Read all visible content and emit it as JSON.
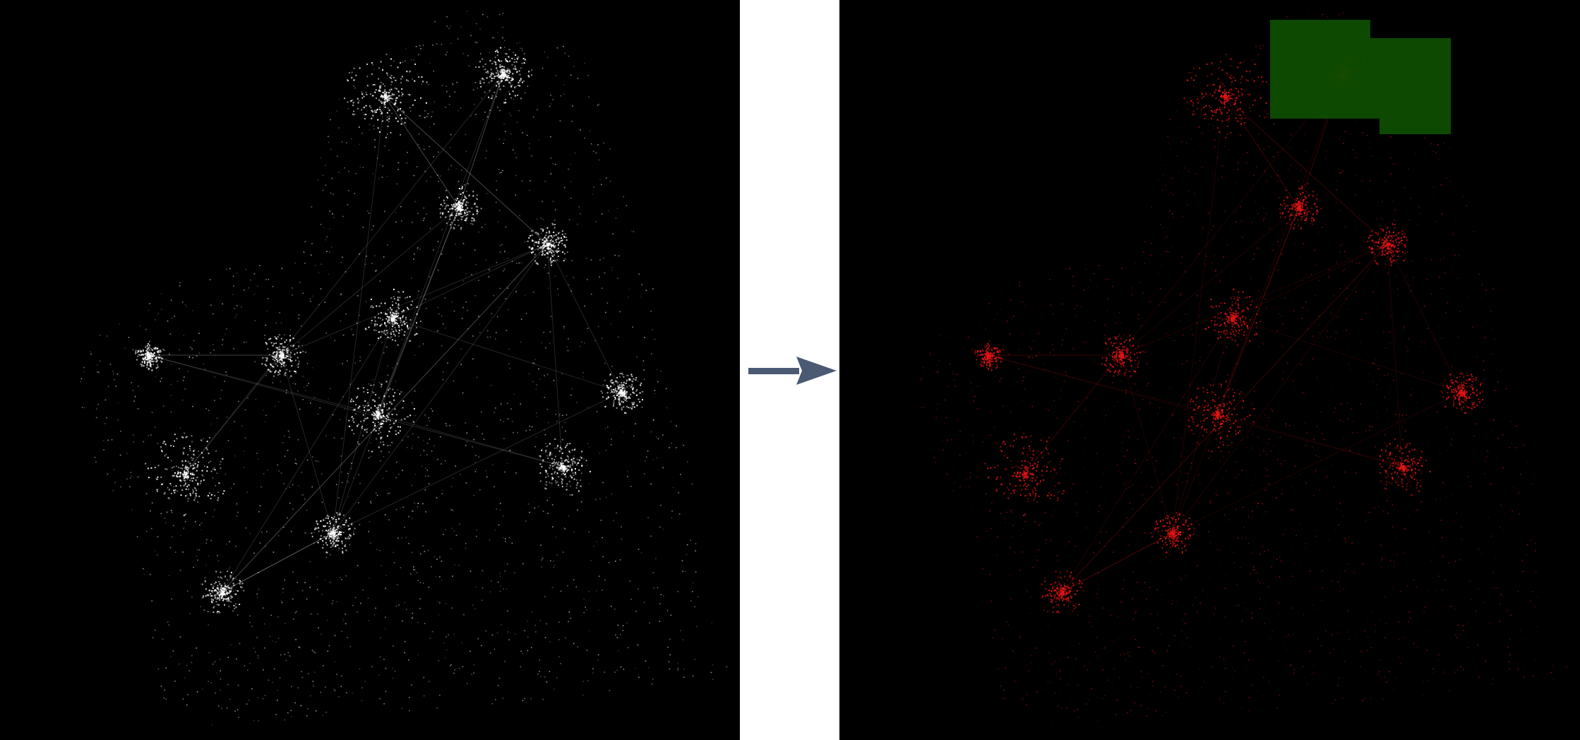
{
  "figure": {
    "panels": [
      {
        "id": "input-map",
        "style": "grayscale nighttime lights",
        "background": "#000000",
        "point_color": "#ffffff"
      },
      {
        "id": "output-map",
        "style": "classified lights",
        "background": "#000000",
        "point_color": "#e01515",
        "overlay_color": "#0e4d00"
      }
    ],
    "arrow": {
      "icon": "right-arrow-icon",
      "color": "#4a5a72",
      "direction": "right"
    }
  }
}
